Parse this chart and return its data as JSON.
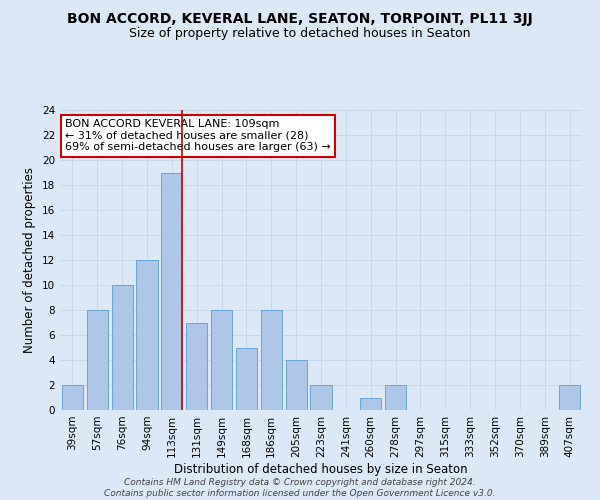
{
  "title": "BON ACCORD, KEVERAL LANE, SEATON, TORPOINT, PL11 3JJ",
  "subtitle": "Size of property relative to detached houses in Seaton",
  "xlabel": "Distribution of detached houses by size in Seaton",
  "ylabel": "Number of detached properties",
  "categories": [
    "39sqm",
    "57sqm",
    "76sqm",
    "94sqm",
    "113sqm",
    "131sqm",
    "149sqm",
    "168sqm",
    "186sqm",
    "205sqm",
    "223sqm",
    "241sqm",
    "260sqm",
    "278sqm",
    "297sqm",
    "315sqm",
    "333sqm",
    "352sqm",
    "370sqm",
    "389sqm",
    "407sqm"
  ],
  "values": [
    2,
    8,
    10,
    12,
    19,
    7,
    8,
    5,
    8,
    4,
    2,
    0,
    1,
    2,
    0,
    0,
    0,
    0,
    0,
    0,
    2
  ],
  "bar_color": "#aec6e8",
  "bar_edge_color": "#5a9fd4",
  "grid_color": "#c8d8e8",
  "background_color": "#dce8f5",
  "vline_x_index": 4,
  "vline_color": "#cc0000",
  "annotation_text": "BON ACCORD KEVERAL LANE: 109sqm\n← 31% of detached houses are smaller (28)\n69% of semi-detached houses are larger (63) →",
  "annotation_box_color": "#ffffff",
  "annotation_box_edge": "#cc0000",
  "ylim": [
    0,
    24
  ],
  "yticks": [
    0,
    2,
    4,
    6,
    8,
    10,
    12,
    14,
    16,
    18,
    20,
    22,
    24
  ],
  "footer": "Contains HM Land Registry data © Crown copyright and database right 2024.\nContains public sector information licensed under the Open Government Licence v3.0.",
  "title_fontsize": 10,
  "subtitle_fontsize": 9,
  "xlabel_fontsize": 8.5,
  "ylabel_fontsize": 8.5,
  "tick_fontsize": 7.5,
  "annotation_fontsize": 8,
  "footer_fontsize": 6.5
}
